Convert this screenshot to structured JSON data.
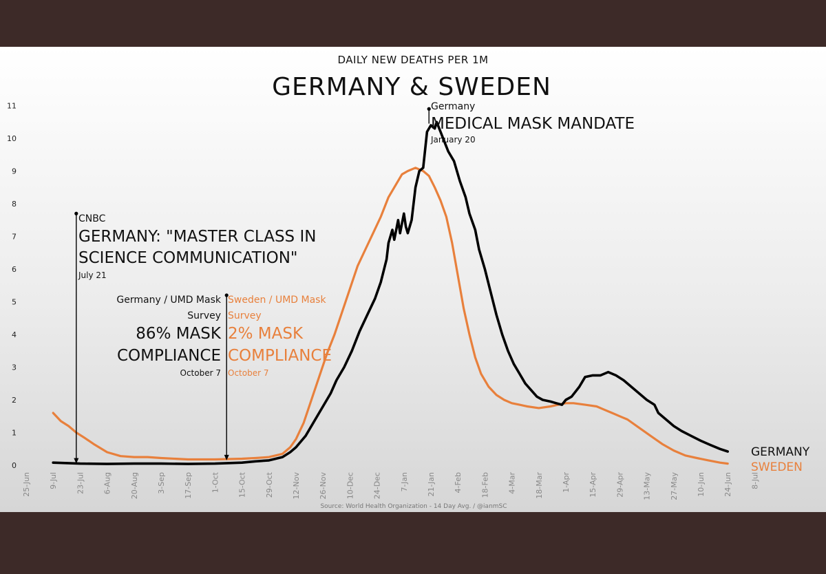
{
  "chart_data": {
    "type": "line",
    "supertitle": "DAILY NEW DEATHS PER 1M",
    "title": "GERMANY & SWEDEN",
    "source": "Source: World Health Organization - 14 Day Avg.  / @ianmSC",
    "xlabel": "",
    "ylabel": "",
    "ylim": [
      0,
      11
    ],
    "yticks": [
      "0",
      "1",
      "2",
      "3",
      "4",
      "5",
      "6",
      "7",
      "8",
      "9",
      "10",
      "11"
    ],
    "xticks": [
      "25-Jun",
      "9-Jul",
      "23-Jul",
      "6-Aug",
      "20-Aug",
      "3-Sep",
      "17-Sep",
      "1-Oct",
      "15-Oct",
      "29-Oct",
      "12-Nov",
      "26-Nov",
      "10-Dec",
      "24-Dec",
      "7-Jan",
      "21-Jan",
      "4-Feb",
      "18-Feb",
      "4-Mar",
      "18-Mar",
      "1-Apr",
      "15-Apr",
      "29-Apr",
      "13-May",
      "27-May",
      "10-Jun",
      "24-Jun",
      "8-Jul"
    ],
    "grid": false,
    "series": [
      {
        "name": "GERMANY",
        "color": "#000000",
        "points": [
          [
            14,
            0.08
          ],
          [
            28,
            0.05
          ],
          [
            42,
            0.04
          ],
          [
            56,
            0.05
          ],
          [
            70,
            0.05
          ],
          [
            84,
            0.04
          ],
          [
            98,
            0.05
          ],
          [
            112,
            0.08
          ],
          [
            119,
            0.12
          ],
          [
            126,
            0.15
          ],
          [
            133,
            0.25
          ],
          [
            137,
            0.4
          ],
          [
            140,
            0.55
          ],
          [
            145,
            0.9
          ],
          [
            150,
            1.4
          ],
          [
            154,
            1.8
          ],
          [
            158,
            2.2
          ],
          [
            161,
            2.6
          ],
          [
            165,
            3.0
          ],
          [
            169,
            3.5
          ],
          [
            173,
            4.1
          ],
          [
            177,
            4.6
          ],
          [
            181,
            5.1
          ],
          [
            184,
            5.6
          ],
          [
            187,
            6.3
          ],
          [
            188,
            6.8
          ],
          [
            190,
            7.2
          ],
          [
            191,
            6.9
          ],
          [
            193,
            7.5
          ],
          [
            194,
            7.1
          ],
          [
            196,
            7.7
          ],
          [
            197,
            7.3
          ],
          [
            198,
            7.1
          ],
          [
            200,
            7.5
          ],
          [
            202,
            8.5
          ],
          [
            204,
            9.0
          ],
          [
            206,
            9.1
          ],
          [
            208,
            10.2
          ],
          [
            210,
            10.4
          ],
          [
            212,
            10.3
          ],
          [
            213,
            10.5
          ],
          [
            215,
            10.2
          ],
          [
            217,
            9.9
          ],
          [
            219,
            9.6
          ],
          [
            222,
            9.3
          ],
          [
            225,
            8.7
          ],
          [
            228,
            8.2
          ],
          [
            230,
            7.7
          ],
          [
            233,
            7.2
          ],
          [
            235,
            6.6
          ],
          [
            238,
            6.0
          ],
          [
            241,
            5.3
          ],
          [
            244,
            4.6
          ],
          [
            247,
            4.0
          ],
          [
            250,
            3.5
          ],
          [
            253,
            3.1
          ],
          [
            256,
            2.8
          ],
          [
            259,
            2.5
          ],
          [
            262,
            2.3
          ],
          [
            265,
            2.1
          ],
          [
            268,
            2.0
          ],
          [
            272,
            1.95
          ],
          [
            275,
            1.9
          ],
          [
            278,
            1.85
          ],
          [
            280,
            2.0
          ],
          [
            283,
            2.1
          ],
          [
            287,
            2.4
          ],
          [
            290,
            2.7
          ],
          [
            294,
            2.75
          ],
          [
            298,
            2.75
          ],
          [
            302,
            2.85
          ],
          [
            306,
            2.75
          ],
          [
            310,
            2.6
          ],
          [
            314,
            2.4
          ],
          [
            318,
            2.2
          ],
          [
            322,
            2.0
          ],
          [
            326,
            1.85
          ],
          [
            328,
            1.6
          ],
          [
            332,
            1.4
          ],
          [
            336,
            1.2
          ],
          [
            340,
            1.05
          ],
          [
            345,
            0.9
          ],
          [
            350,
            0.75
          ],
          [
            355,
            0.62
          ],
          [
            360,
            0.5
          ],
          [
            364,
            0.42
          ]
        ]
      },
      {
        "name": "SWEDEN",
        "color": "#e8803c",
        "points": [
          [
            14,
            1.6
          ],
          [
            18,
            1.35
          ],
          [
            22,
            1.2
          ],
          [
            26,
            1.0
          ],
          [
            30,
            0.85
          ],
          [
            35,
            0.65
          ],
          [
            42,
            0.4
          ],
          [
            49,
            0.28
          ],
          [
            56,
            0.25
          ],
          [
            63,
            0.25
          ],
          [
            70,
            0.22
          ],
          [
            84,
            0.18
          ],
          [
            98,
            0.18
          ],
          [
            112,
            0.2
          ],
          [
            119,
            0.22
          ],
          [
            126,
            0.25
          ],
          [
            133,
            0.35
          ],
          [
            137,
            0.55
          ],
          [
            140,
            0.8
          ],
          [
            144,
            1.3
          ],
          [
            148,
            2.0
          ],
          [
            152,
            2.7
          ],
          [
            156,
            3.4
          ],
          [
            160,
            4.0
          ],
          [
            164,
            4.7
          ],
          [
            168,
            5.4
          ],
          [
            172,
            6.1
          ],
          [
            176,
            6.6
          ],
          [
            180,
            7.1
          ],
          [
            184,
            7.6
          ],
          [
            188,
            8.2
          ],
          [
            192,
            8.6
          ],
          [
            195,
            8.9
          ],
          [
            198,
            9.0
          ],
          [
            202,
            9.1
          ],
          [
            206,
            9.0
          ],
          [
            209,
            8.85
          ],
          [
            212,
            8.5
          ],
          [
            215,
            8.1
          ],
          [
            218,
            7.6
          ],
          [
            221,
            6.8
          ],
          [
            224,
            5.8
          ],
          [
            227,
            4.8
          ],
          [
            230,
            4.0
          ],
          [
            233,
            3.3
          ],
          [
            236,
            2.8
          ],
          [
            240,
            2.4
          ],
          [
            244,
            2.15
          ],
          [
            248,
            2.0
          ],
          [
            252,
            1.9
          ],
          [
            256,
            1.85
          ],
          [
            260,
            1.8
          ],
          [
            266,
            1.75
          ],
          [
            272,
            1.8
          ],
          [
            276,
            1.85
          ],
          [
            280,
            1.9
          ],
          [
            284,
            1.9
          ],
          [
            290,
            1.85
          ],
          [
            296,
            1.8
          ],
          [
            300,
            1.7
          ],
          [
            304,
            1.6
          ],
          [
            308,
            1.5
          ],
          [
            312,
            1.4
          ],
          [
            318,
            1.15
          ],
          [
            324,
            0.9
          ],
          [
            330,
            0.65
          ],
          [
            336,
            0.45
          ],
          [
            342,
            0.3
          ],
          [
            348,
            0.22
          ],
          [
            354,
            0.15
          ],
          [
            360,
            0.08
          ],
          [
            364,
            0.05
          ]
        ]
      }
    ],
    "series_labels": {
      "germany": "GERMANY",
      "sweden": "SWEDEN"
    },
    "annotations": {
      "cnbc": {
        "source": "CNBC",
        "headline_1": "GERMANY: \"MASTER CLASS IN",
        "headline_2": "SCIENCE COMMUNICATION\"",
        "date": "July 21",
        "day": 26,
        "value": 7.7
      },
      "germany_survey": {
        "label_1": "Germany / UMD Mask",
        "label_2": "Survey",
        "stat_1": "86% MASK",
        "stat_2": "COMPLIANCE",
        "date": "October 7"
      },
      "sweden_survey": {
        "label_1": "Sweden / UMD Mask",
        "label_2": "Survey",
        "stat_1": "2% MASK",
        "stat_2": "COMPLIANCE",
        "date": "October 7",
        "day": 104,
        "value": 5.2
      },
      "mandate": {
        "source": "Germany",
        "headline": "MEDICAL MASK MANDATE",
        "date": "January 20",
        "day": 209,
        "value": 10.9
      }
    }
  }
}
